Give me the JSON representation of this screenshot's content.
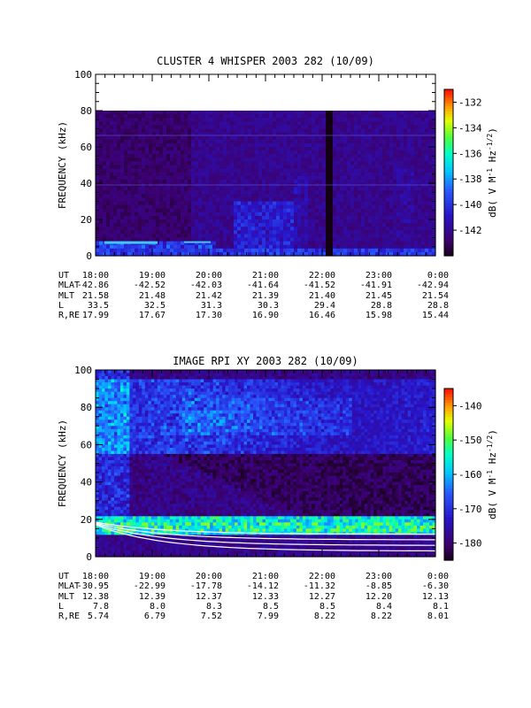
{
  "chart_data": [
    {
      "type": "heatmap",
      "title": "CLUSTER 4 WHISPER 2003 282 (10/09)",
      "ylabel": "FREQUENCY (kHz)",
      "ylim": [
        0,
        100
      ],
      "yticks": [
        "0",
        "20",
        "40",
        "60",
        "80",
        "100"
      ],
      "xticks": [
        "18:00",
        "19:00",
        "20:00",
        "21:00",
        "22:00",
        "23:00",
        "0:00"
      ],
      "colorbar": {
        "label": "dB( V M^-1 Hz^-1/2)",
        "label_main": "dB( V M",
        "label_mid": " Hz",
        "label_sup1": "-1",
        "label_sup2": "-1/2",
        "label_end": ")",
        "range": [
          -144,
          -131
        ],
        "ticks": [
          "-132",
          "-134",
          "-136",
          "-138",
          "-140",
          "-142"
        ]
      },
      "ephemeris": [
        {
          "label": "UT",
          "values": [
            "18:00",
            "19:00",
            "20:00",
            "21:00",
            "22:00",
            "23:00",
            "0:00"
          ]
        },
        {
          "label": "MLAT",
          "values": [
            "-42.86",
            "-42.52",
            "-42.03",
            "-41.64",
            "-41.52",
            "-41.91",
            "-42.94"
          ]
        },
        {
          "label": "MLT",
          "values": [
            "21.58",
            "21.48",
            "21.42",
            "21.39",
            "21.40",
            "21.45",
            "21.54"
          ]
        },
        {
          "label": "L",
          "values": [
            "33.5",
            "32.5",
            "31.3",
            "30.3",
            "29.4",
            "28.8",
            "28.8"
          ]
        },
        {
          "label": "R,RE",
          "values": [
            "17.99",
            "17.67",
            "17.30",
            "16.90",
            "16.46",
            "15.98",
            "15.44"
          ]
        }
      ]
    },
    {
      "type": "heatmap",
      "title": "IMAGE RPI XY 2003 282 (10/09)",
      "ylabel": "FREQUENCY (kHz)",
      "ylim": [
        0,
        100
      ],
      "yticks": [
        "0",
        "20",
        "40",
        "60",
        "80",
        "100"
      ],
      "xticks": [
        "18:00",
        "19:00",
        "20:00",
        "21:00",
        "22:00",
        "23:00",
        "0:00"
      ],
      "colorbar": {
        "label": "dB( V M^-1 Hz^-1/2)",
        "label_main": "dB( V M",
        "label_mid": " Hz",
        "label_sup1": "-1",
        "label_sup2": "-1/2",
        "label_end": ")",
        "range": [
          -185,
          -135
        ],
        "ticks": [
          "-140",
          "-150",
          "-160",
          "-170",
          "-180"
        ]
      },
      "ephemeris": [
        {
          "label": "UT",
          "values": [
            "18:00",
            "19:00",
            "20:00",
            "21:00",
            "22:00",
            "23:00",
            "0:00"
          ]
        },
        {
          "label": "MLAT",
          "values": [
            "-30.95",
            "-22.99",
            "-17.78",
            "-14.12",
            "-11.32",
            "-8.85",
            "-6.30"
          ]
        },
        {
          "label": "MLT",
          "values": [
            "12.38",
            "12.39",
            "12.37",
            "12.33",
            "12.27",
            "12.20",
            "12.13"
          ]
        },
        {
          "label": "L",
          "values": [
            "7.8",
            "8.0",
            "8.3",
            "8.5",
            "8.5",
            "8.4",
            "8.1"
          ]
        },
        {
          "label": "R,RE",
          "values": [
            "5.74",
            "6.79",
            "7.52",
            "7.99",
            "8.22",
            "8.22",
            "8.01"
          ]
        }
      ]
    }
  ]
}
